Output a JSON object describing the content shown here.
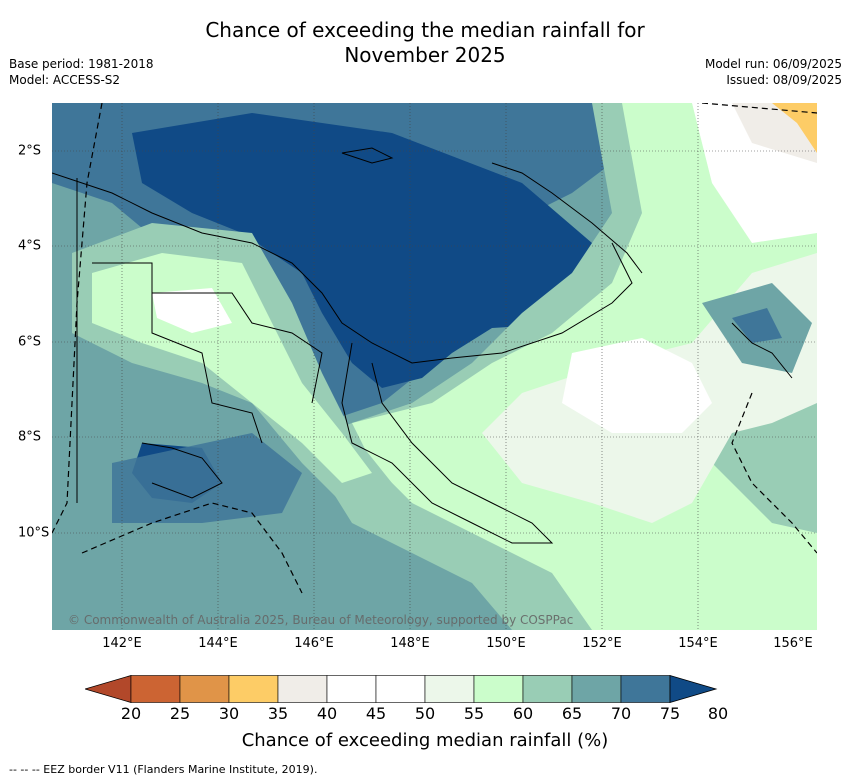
{
  "title_line1": "Chance of exceeding the median rainfall for",
  "title_line2": "November 2025",
  "base_period": "Base period: 1981-2018",
  "model": "Model: ACCESS-S2",
  "model_run": "Model run: 06/09/2025",
  "issued": "Issued: 08/09/2025",
  "copyright": "© Commonwealth of Australia 2025, Bureau of Meteorology, supported by COSPPac",
  "x_ticks": [
    "142°E",
    "144°E",
    "146°E",
    "148°E",
    "150°E",
    "152°E",
    "154°E",
    "156°E"
  ],
  "y_ticks": [
    "2°S",
    "4°S",
    "6°S",
    "8°S",
    "10°S"
  ],
  "legend": {
    "ticks": [
      "20",
      "25",
      "30",
      "35",
      "40",
      "45",
      "50",
      "55",
      "60",
      "65",
      "70",
      "75",
      "80"
    ],
    "colors": [
      "#b2482a",
      "#cc6433",
      "#e09448",
      "#fdcc66",
      "#f0ede8",
      "#ffffff",
      "#ffffff",
      "#ecf7ea",
      "#cbfdcb",
      "#99cdb5",
      "#6ea5a6",
      "#3f7699",
      "#104a86"
    ],
    "title": "Chance of exceeding median rainfall (%)"
  },
  "footnote": "-- -- -- EEZ border V11 (Flanders Marine Institute, 2019)."
}
